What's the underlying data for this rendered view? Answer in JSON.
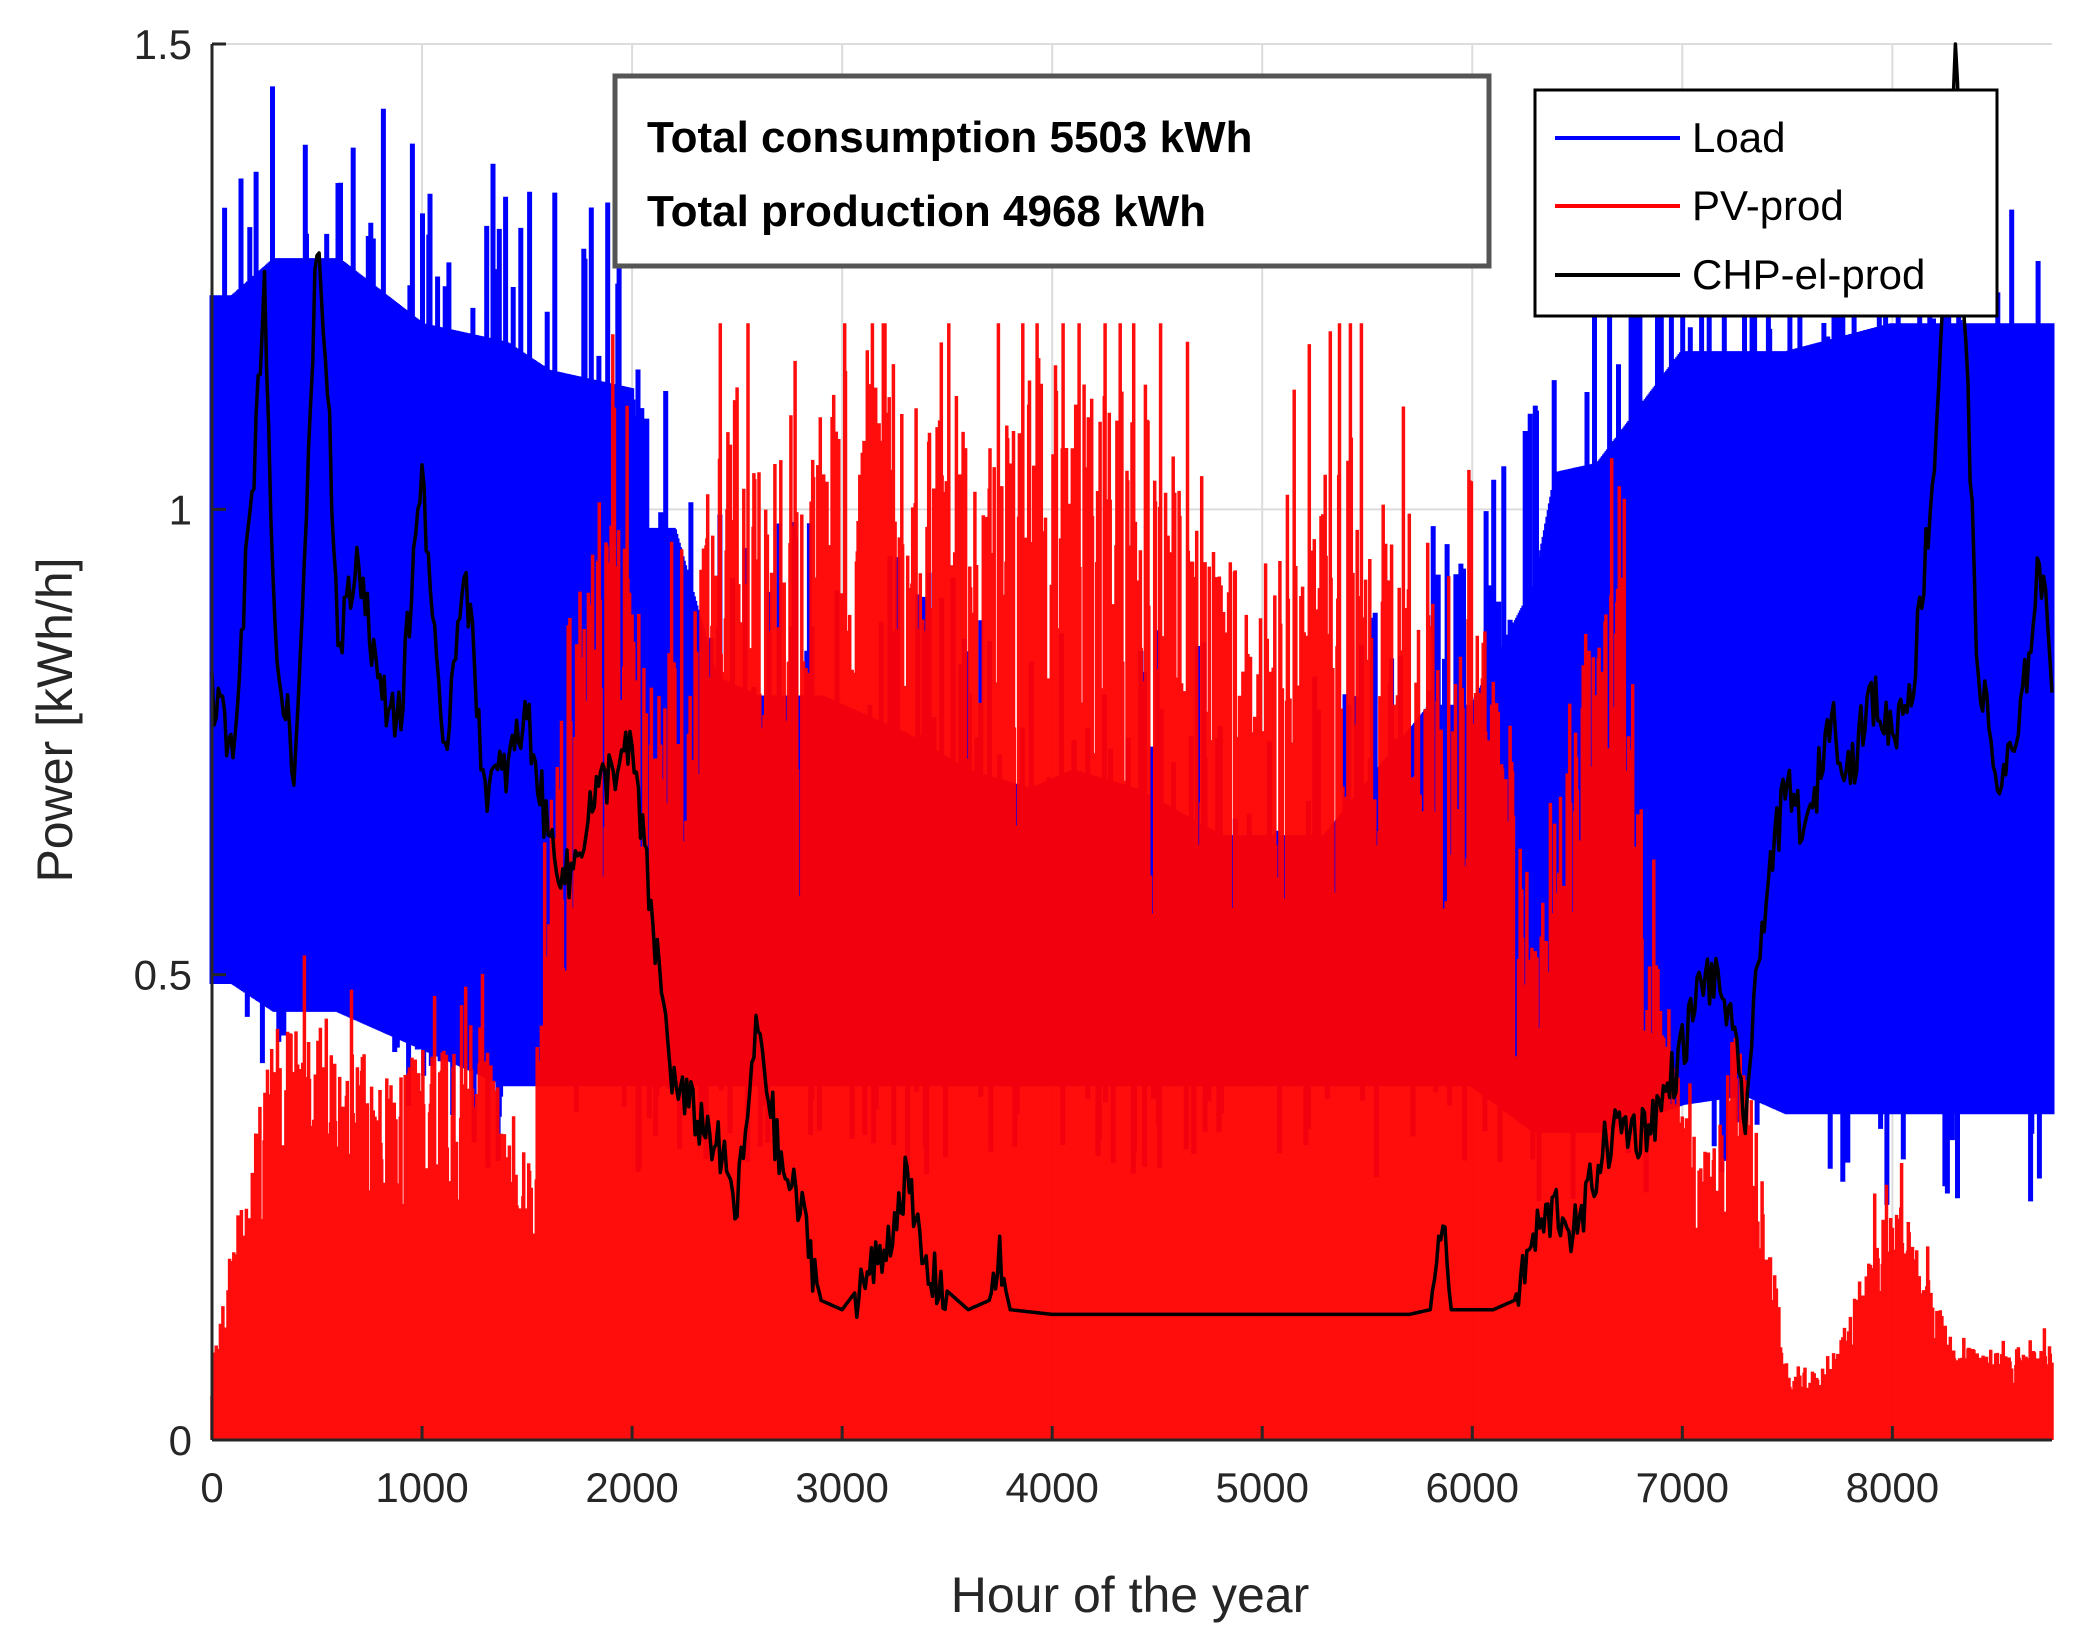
{
  "chart_data": {
    "type": "line",
    "xlabel": "Hour of the year",
    "ylabel": "Power [kWh/h]",
    "xlim": [
      0,
      8760
    ],
    "ylim": [
      0,
      1.5
    ],
    "xticks": [
      0,
      1000,
      2000,
      3000,
      4000,
      5000,
      6000,
      7000,
      8000
    ],
    "xtick_labels": [
      "0",
      "1000",
      "2000",
      "3000",
      "4000",
      "5000",
      "6000",
      "7000",
      "8000"
    ],
    "yticks": [
      0,
      0.5,
      1,
      1.5
    ],
    "ytick_labels": [
      "0",
      "0.5",
      "1",
      "1.5"
    ],
    "grid": true,
    "legend_position": "top-right",
    "annotation": [
      "Total consumption 5503 kWh",
      "Total production 4968 kWh"
    ],
    "series": [
      {
        "name": "Load",
        "color": "#0000ff",
        "style": "hourly band between daily min and max",
        "x": [
          0,
          100,
          300,
          600,
          1000,
          1400,
          1600,
          2000,
          2050,
          2200,
          2400,
          2600,
          2900,
          3300,
          3600,
          3900,
          4100,
          4400,
          4800,
          5000,
          5300,
          5800,
          6000,
          6300,
          6400,
          6600,
          7000,
          7300,
          7500,
          8000,
          8760
        ],
        "max": [
          1.23,
          1.23,
          1.27,
          1.27,
          1.2,
          1.18,
          1.15,
          1.13,
          0.98,
          0.98,
          0.82,
          0.8,
          0.8,
          0.76,
          0.72,
          0.7,
          0.72,
          0.7,
          0.65,
          0.65,
          0.65,
          0.79,
          0.79,
          0.92,
          1.04,
          1.05,
          1.17,
          1.17,
          1.17,
          1.2,
          1.2
        ],
        "min": [
          0.49,
          0.49,
          0.46,
          0.46,
          0.42,
          0.38,
          0.38,
          0.38,
          0.38,
          0.38,
          0.38,
          0.38,
          0.38,
          0.38,
          0.38,
          0.38,
          0.38,
          0.38,
          0.38,
          0.38,
          0.38,
          0.38,
          0.38,
          0.33,
          0.33,
          0.33,
          0.36,
          0.37,
          0.35,
          0.35,
          0.35
        ]
      },
      {
        "name": "PV-prod",
        "color": "#ff0000",
        "style": "hourly bars, daily peak envelope",
        "x": [
          0,
          300,
          600,
          900,
          1200,
          1500,
          1700,
          1900,
          2100,
          2300,
          2500,
          2700,
          3000,
          3300,
          3600,
          3900,
          4200,
          4500,
          4800,
          5100,
          5400,
          5700,
          5900,
          6100,
          6300,
          6500,
          6700,
          6900,
          7100,
          7300,
          7500,
          7700,
          8000,
          8300,
          8760
        ],
        "peak": [
          0.08,
          0.45,
          0.42,
          0.4,
          0.5,
          0.28,
          0.9,
          1.05,
          0.8,
          0.98,
          1.15,
          0.95,
          1.18,
          1.13,
          1.07,
          1.18,
          1.14,
          1.1,
          0.95,
          0.95,
          1.08,
          0.92,
          0.9,
          0.88,
          0.55,
          0.85,
          0.95,
          0.5,
          0.3,
          0.42,
          0.08,
          0.08,
          0.28,
          0.1,
          0.1
        ]
      },
      {
        "name": "CHP-el-prod",
        "color": "#000000",
        "style": "line",
        "x": [
          0,
          100,
          200,
          250,
          300,
          400,
          500,
          550,
          600,
          700,
          800,
          900,
          1000,
          1100,
          1200,
          1300,
          1400,
          1500,
          1600,
          1700,
          1800,
          1900,
          2000,
          2100,
          2200,
          2300,
          2400,
          2500,
          2600,
          2700,
          2800,
          2900,
          3000,
          3100,
          3200,
          3300,
          3400,
          3500,
          3600,
          3700,
          3750,
          3800,
          4000,
          4500,
          5000,
          5500,
          5700,
          5800,
          5850,
          5900,
          6000,
          6100,
          6200,
          6300,
          6400,
          6500,
          6600,
          6700,
          6800,
          6900,
          7000,
          7100,
          7200,
          7300,
          7400,
          7500,
          7600,
          7700,
          7800,
          7900,
          8000,
          8100,
          8200,
          8300,
          8400,
          8500,
          8600,
          8700,
          8760
        ],
        "values": [
          0.8,
          0.75,
          1.05,
          1.25,
          0.85,
          0.72,
          1.3,
          1.15,
          0.85,
          0.95,
          0.8,
          0.78,
          1.05,
          0.72,
          0.95,
          0.7,
          0.72,
          0.78,
          0.65,
          0.6,
          0.68,
          0.72,
          0.74,
          0.55,
          0.38,
          0.35,
          0.32,
          0.25,
          0.45,
          0.3,
          0.25,
          0.15,
          0.14,
          0.17,
          0.2,
          0.28,
          0.18,
          0.16,
          0.14,
          0.15,
          0.19,
          0.14,
          0.135,
          0.135,
          0.135,
          0.135,
          0.135,
          0.14,
          0.24,
          0.14,
          0.14,
          0.14,
          0.15,
          0.22,
          0.25,
          0.22,
          0.3,
          0.34,
          0.33,
          0.36,
          0.42,
          0.5,
          0.48,
          0.35,
          0.6,
          0.7,
          0.65,
          0.78,
          0.72,
          0.8,
          0.76,
          0.82,
          1.05,
          1.5,
          0.85,
          0.7,
          0.75,
          0.95,
          0.82
        ]
      }
    ]
  }
}
